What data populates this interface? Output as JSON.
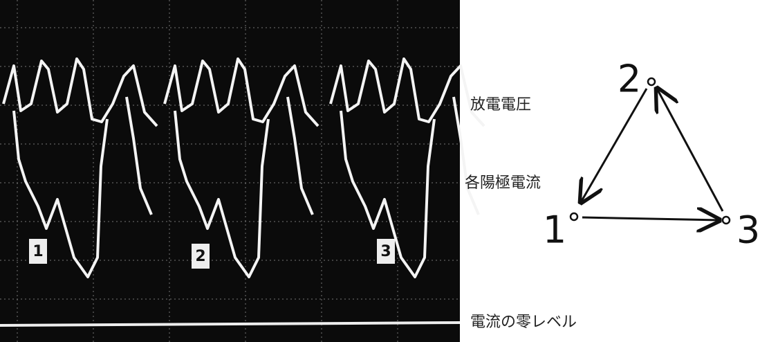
{
  "oscilloscope": {
    "trace_labels": [
      "1",
      "2",
      "3"
    ]
  },
  "annotations": {
    "discharge_voltage": "放電電圧",
    "anode_current": "各陽極電流",
    "current_zero_level": "電流の零レベル"
  },
  "diagram": {
    "nodes": [
      {
        "label": "1"
      },
      {
        "label": "2"
      },
      {
        "label": "3"
      }
    ]
  }
}
